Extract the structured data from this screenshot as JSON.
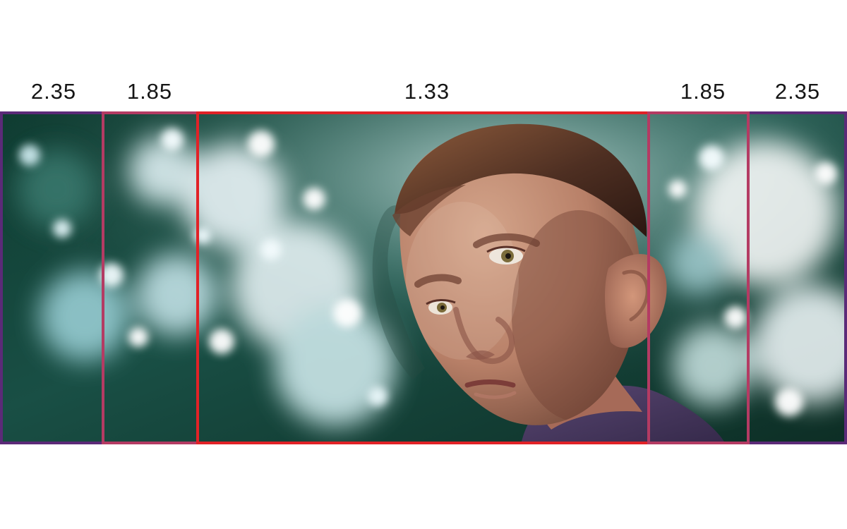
{
  "labels": {
    "left_outer": "2.35",
    "left_inner": "1.85",
    "center": "1.33",
    "right_inner": "1.85",
    "right_outer": "2.35"
  },
  "colors": {
    "outer_frame": "#5b2a78",
    "inner_frame": "#b43b63",
    "center_frame": "#e12227",
    "foliage_dark": "#113a31",
    "foliage_mid": "#1c5a4e",
    "sky_highlight": "#f4fbff"
  },
  "image": {
    "subject": "close-up of a boy against a bokeh foliage background"
  }
}
